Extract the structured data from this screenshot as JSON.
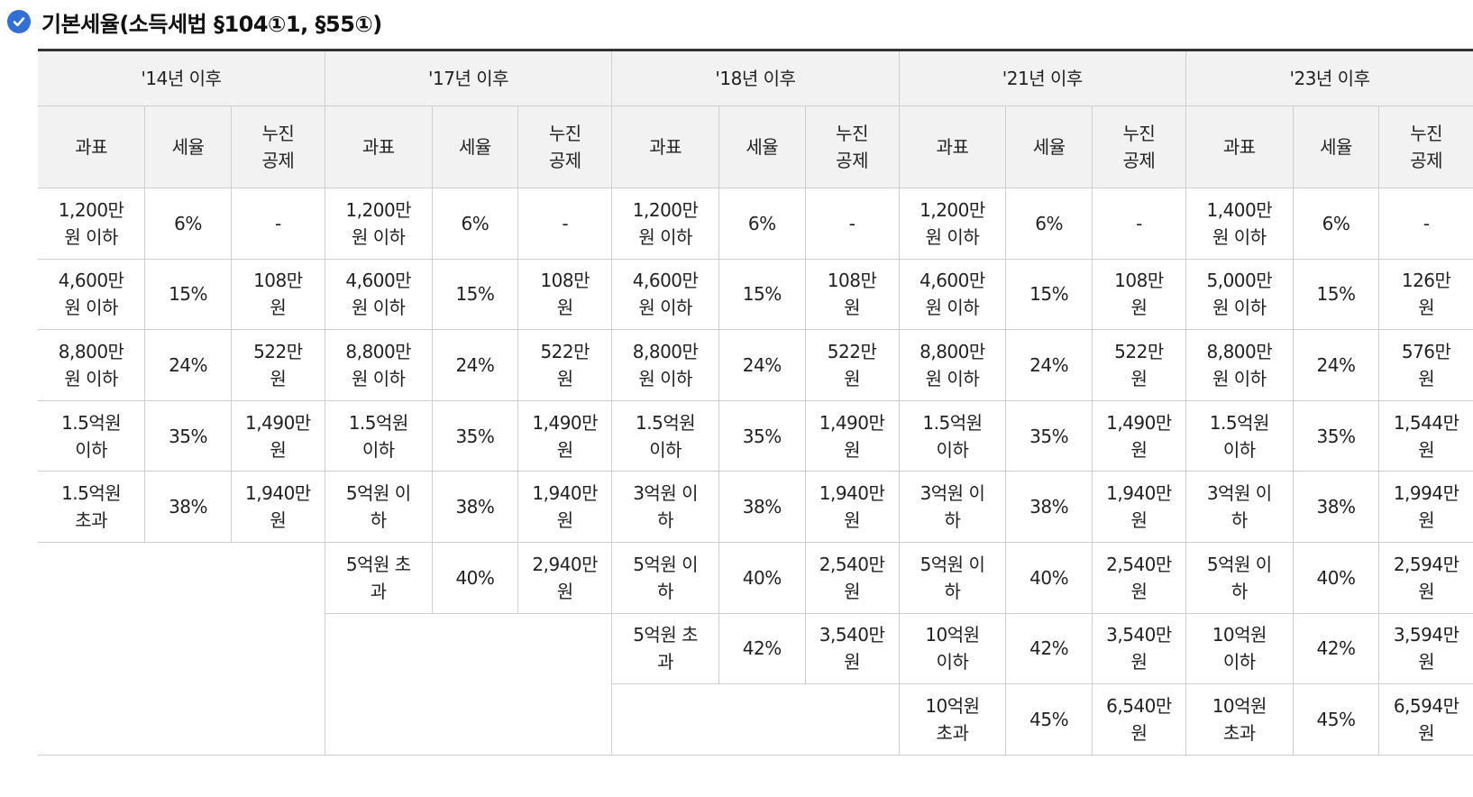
{
  "title": "기본세율(소득세법 §104①1, §55①)",
  "periods": [
    "'14년 이후",
    "'17년 이후",
    "'18년 이후",
    "'21년 이후",
    "'23년 이후"
  ],
  "columns": [
    "과표",
    "세율",
    "누진\n공제"
  ],
  "p14": [
    [
      "1,200만\n원 이하",
      "6%",
      "-"
    ],
    [
      "4,600만\n원 이하",
      "15%",
      "108만\n원"
    ],
    [
      "8,800만\n원 이하",
      "24%",
      "522만\n원"
    ],
    [
      "1.5억원\n이하",
      "35%",
      "1,490만\n원"
    ],
    [
      "1.5억원\n초과",
      "38%",
      "1,940만\n원"
    ]
  ],
  "p17": [
    [
      "1,200만\n원 이하",
      "6%",
      "-"
    ],
    [
      "4,600만\n원 이하",
      "15%",
      "108만\n원"
    ],
    [
      "8,800만\n원 이하",
      "24%",
      "522만\n원"
    ],
    [
      "1.5억원\n이하",
      "35%",
      "1,490만\n원"
    ],
    [
      "5억원 이\n하",
      "38%",
      "1,940만\n원"
    ],
    [
      "5억원 초\n과",
      "40%",
      "2,940만\n원"
    ]
  ],
  "p18": [
    [
      "1,200만\n원 이하",
      "6%",
      "-"
    ],
    [
      "4,600만\n원 이하",
      "15%",
      "108만\n원"
    ],
    [
      "8,800만\n원 이하",
      "24%",
      "522만\n원"
    ],
    [
      "1.5억원\n이하",
      "35%",
      "1,490만\n원"
    ],
    [
      "3억원 이\n하",
      "38%",
      "1,940만\n원"
    ],
    [
      "5억원 이\n하",
      "40%",
      "2,540만\n원"
    ],
    [
      "5억원 초\n과",
      "42%",
      "3,540만\n원"
    ]
  ],
  "p21": [
    [
      "1,200만\n원 이하",
      "6%",
      "-"
    ],
    [
      "4,600만\n원 이하",
      "15%",
      "108만\n원"
    ],
    [
      "8,800만\n원 이하",
      "24%",
      "522만\n원"
    ],
    [
      "1.5억원\n이하",
      "35%",
      "1,490만\n원"
    ],
    [
      "3억원 이\n하",
      "38%",
      "1,940만\n원"
    ],
    [
      "5억원 이\n하",
      "40%",
      "2,540만\n원"
    ],
    [
      "10억원\n이하",
      "42%",
      "3,540만\n원"
    ],
    [
      "10억원\n초과",
      "45%",
      "6,540만\n원"
    ]
  ],
  "p23": [
    [
      "1,400만\n원 이하",
      "6%",
      "-"
    ],
    [
      "5,000만\n원 이하",
      "15%",
      "126만\n원"
    ],
    [
      "8,800만\n원 이하",
      "24%",
      "576만\n원"
    ],
    [
      "1.5억원\n이하",
      "35%",
      "1,544만\n원"
    ],
    [
      "3억원 이\n하",
      "38%",
      "1,994만\n원"
    ],
    [
      "5억원 이\n하",
      "40%",
      "2,594만\n원"
    ],
    [
      "10억원\n이하",
      "42%",
      "3,594만\n원"
    ],
    [
      "10억원\n초과",
      "45%",
      "6,594만\n원"
    ]
  ]
}
